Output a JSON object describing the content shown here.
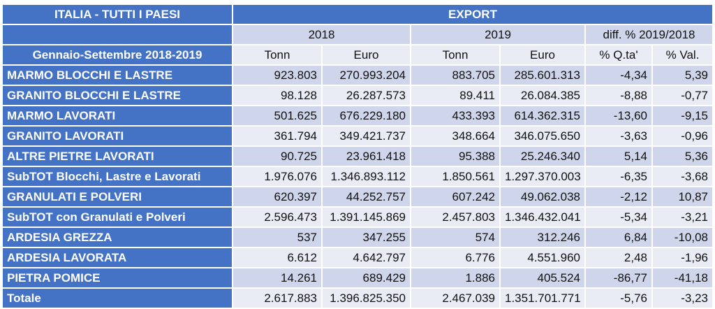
{
  "header": {
    "left_title": "ITALIA - TUTTI I PAESI",
    "export_title": "EXPORT",
    "period_label": "Gennaio-Settembre 2018-2019",
    "year_2018": "2018",
    "year_2019": "2019",
    "diff_label": "diff. % 2019/2018",
    "col_tonn_2018": "Tonn",
    "col_euro_2018": "Euro",
    "col_tonn_2019": "Tonn",
    "col_euro_2019": "Euro",
    "col_qta": "% Q.ta'",
    "col_val": "% Val."
  },
  "rows": [
    {
      "label": "MARMO BLOCCHI E LASTRE",
      "tonn_2018": "923.803",
      "euro_2018": "270.993.204",
      "tonn_2019": "883.705",
      "euro_2019": "285.601.313",
      "qta": "-4,34",
      "val": "5,39"
    },
    {
      "label": "GRANITO BLOCCHI E LASTRE",
      "tonn_2018": "98.128",
      "euro_2018": "26.287.573",
      "tonn_2019": "89.411",
      "euro_2019": "26.084.385",
      "qta": "-8,88",
      "val": "-0,77"
    },
    {
      "label": "MARMO LAVORATI",
      "tonn_2018": "501.625",
      "euro_2018": "676.229.180",
      "tonn_2019": "433.393",
      "euro_2019": "614.362.315",
      "qta": "-13,60",
      "val": "-9,15"
    },
    {
      "label": "GRANITO LAVORATI",
      "tonn_2018": "361.794",
      "euro_2018": "349.421.737",
      "tonn_2019": "348.664",
      "euro_2019": "346.075.650",
      "qta": "-3,63",
      "val": "-0,96"
    },
    {
      "label": "ALTRE PIETRE LAVORATI",
      "tonn_2018": "90.725",
      "euro_2018": "23.961.418",
      "tonn_2019": "95.388",
      "euro_2019": "25.246.340",
      "qta": "5,14",
      "val": "5,36"
    },
    {
      "label": "SubTOT Blocchi, Lastre e Lavorati",
      "tonn_2018": "1.976.076",
      "euro_2018": "1.346.893.112",
      "tonn_2019": "1.850.561",
      "euro_2019": "1.297.370.003",
      "qta": "-6,35",
      "val": "-3,68"
    },
    {
      "label": "GRANULATI E POLVERI",
      "tonn_2018": "620.397",
      "euro_2018": "44.252.757",
      "tonn_2019": "607.242",
      "euro_2019": "49.062.038",
      "qta": "-2,12",
      "val": "10,87"
    },
    {
      "label": "SubTOT con Granulati e Polveri",
      "tonn_2018": "2.596.473",
      "euro_2018": "1.391.145.869",
      "tonn_2019": "2.457.803",
      "euro_2019": "1.346.432.041",
      "qta": "-5,34",
      "val": "-3,21"
    },
    {
      "label": "ARDESIA GREZZA",
      "tonn_2018": "537",
      "euro_2018": "347.255",
      "tonn_2019": "574",
      "euro_2019": "312.246",
      "qta": "6,84",
      "val": "-10,08"
    },
    {
      "label": "ARDESIA LAVORATA",
      "tonn_2018": "6.612",
      "euro_2018": "4.642.797",
      "tonn_2019": "6.776",
      "euro_2019": "4.551.960",
      "qta": "2,48",
      "val": "-1,96"
    },
    {
      "label": "PIETRA POMICE",
      "tonn_2018": "14.261",
      "euro_2018": "689.429",
      "tonn_2019": "1.886",
      "euro_2019": "405.524",
      "qta": "-86,77",
      "val": "-41,18"
    },
    {
      "label": "Totale",
      "tonn_2018": "2.617.883",
      "euro_2018": "1.396.825.350",
      "tonn_2019": "2.467.039",
      "euro_2019": "1.351.701.771",
      "qta": "-5,76",
      "val": "-3,23"
    }
  ],
  "colors": {
    "header_blue": "#4472c4",
    "row_dark": "#cfd5ea",
    "row_light": "#e9ebf5"
  }
}
